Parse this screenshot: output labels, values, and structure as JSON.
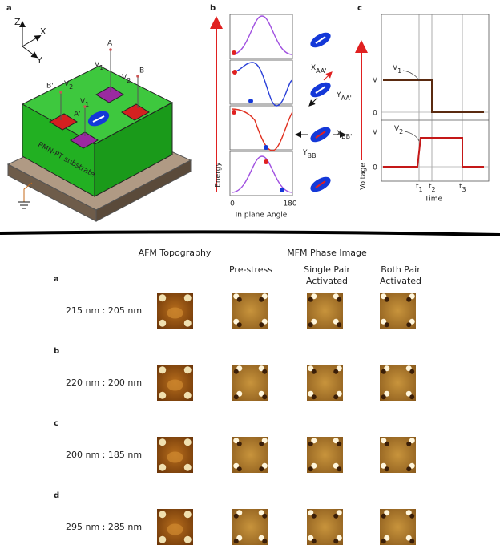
{
  "panel_a": {
    "label": "a",
    "axes": [
      "Z",
      "X",
      "Y"
    ],
    "points": [
      "A",
      "B",
      "B'",
      "A'"
    ],
    "voltages": [
      {
        "main": "V",
        "sub": "1"
      },
      {
        "main": "V",
        "sub": "2"
      },
      {
        "main": "V",
        "sub": "2"
      },
      {
        "main": "V",
        "sub": "1"
      }
    ],
    "substrate": "PMN-PT substrate"
  },
  "panel_b": {
    "label": "b",
    "y_label": "Energy",
    "x_label": "In plane Angle",
    "x_ticks": [
      "0",
      "180"
    ],
    "states": [
      {
        "main": "X",
        "sub": "AA'"
      },
      {
        "main": "Y",
        "sub": "AA'"
      },
      {
        "main": "X",
        "sub": "BB'"
      },
      {
        "main": "Y",
        "sub": "BB'"
      }
    ]
  },
  "panel_c": {
    "label": "c",
    "y_label": "Voltage",
    "x_label": "Time",
    "levels": [
      "V",
      "0",
      "V",
      "0"
    ],
    "signals": [
      {
        "main": "V",
        "sub": "1"
      },
      {
        "main": "V",
        "sub": "2"
      }
    ],
    "times": [
      {
        "main": "t",
        "sub": "1"
      },
      {
        "main": "t",
        "sub": "2"
      },
      {
        "main": "t",
        "sub": "3"
      }
    ]
  },
  "table": {
    "headers": {
      "afm": "AFM Topography",
      "mfm": "MFM Phase Image"
    },
    "columns": [
      [
        "Pre-stress"
      ],
      [
        "Single Pair",
        "Activated"
      ],
      [
        "Both Pair",
        "Activated"
      ]
    ],
    "rows": [
      {
        "label": "a",
        "size": "215 nm : 205 nm"
      },
      {
        "label": "b",
        "size": "220 nm : 200 nm"
      },
      {
        "label": "c",
        "size": "200 nm : 185 nm"
      },
      {
        "label": "d",
        "size": "295 nm : 285 nm"
      }
    ]
  }
}
